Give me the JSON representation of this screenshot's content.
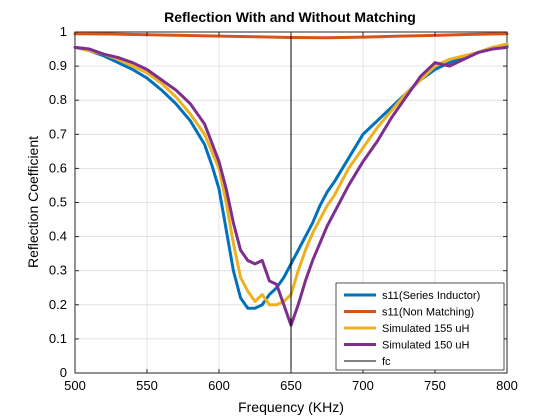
{
  "chart_data": {
    "type": "line",
    "title": "Reflection With and Without Matching",
    "xlabel": "Frequency (KHz)",
    "ylabel": "Reflection Coefficient",
    "xlim": [
      500,
      800
    ],
    "ylim": [
      0,
      1
    ],
    "xticks": [
      500,
      550,
      600,
      650,
      700,
      750,
      800
    ],
    "yticks": [
      0,
      0.1,
      0.2,
      0.3,
      0.4,
      0.5,
      0.6,
      0.7,
      0.8,
      0.9,
      1
    ],
    "grid": true,
    "legend_position": "bottom-right",
    "series": [
      {
        "name": "s11(Series Inductor)",
        "color": "#0072BD",
        "x": [
          500,
          510,
          520,
          530,
          540,
          550,
          560,
          570,
          580,
          590,
          595,
          600,
          605,
          610,
          615,
          620,
          625,
          630,
          635,
          640,
          645,
          650,
          655,
          660,
          665,
          670,
          675,
          680,
          690,
          700,
          710,
          720,
          730,
          740,
          750,
          760,
          770,
          780,
          790,
          800
        ],
        "y": [
          0.955,
          0.945,
          0.93,
          0.91,
          0.89,
          0.865,
          0.83,
          0.79,
          0.74,
          0.67,
          0.61,
          0.54,
          0.42,
          0.3,
          0.22,
          0.19,
          0.19,
          0.2,
          0.23,
          0.25,
          0.28,
          0.32,
          0.36,
          0.4,
          0.44,
          0.49,
          0.53,
          0.56,
          0.63,
          0.7,
          0.74,
          0.78,
          0.82,
          0.86,
          0.89,
          0.91,
          0.925,
          0.94,
          0.955,
          0.96
        ]
      },
      {
        "name": "s11(Non Matching)",
        "color": "#D95319",
        "x": [
          500,
          525,
          550,
          575,
          600,
          625,
          650,
          675,
          700,
          725,
          750,
          775,
          800
        ],
        "y": [
          0.995,
          0.994,
          0.992,
          0.99,
          0.988,
          0.986,
          0.984,
          0.983,
          0.985,
          0.988,
          0.99,
          0.993,
          0.995
        ]
      },
      {
        "name": "Simulated 155 uH",
        "color": "#EDB120",
        "x": [
          500,
          510,
          520,
          530,
          540,
          550,
          560,
          570,
          580,
          590,
          600,
          605,
          610,
          615,
          620,
          625,
          630,
          635,
          640,
          645,
          650,
          655,
          660,
          665,
          670,
          675,
          680,
          690,
          700,
          710,
          720,
          730,
          740,
          750,
          760,
          770,
          780,
          790,
          800
        ],
        "y": [
          0.955,
          0.945,
          0.935,
          0.92,
          0.9,
          0.88,
          0.85,
          0.81,
          0.76,
          0.7,
          0.6,
          0.5,
          0.38,
          0.28,
          0.24,
          0.21,
          0.23,
          0.2,
          0.2,
          0.21,
          0.23,
          0.3,
          0.36,
          0.41,
          0.45,
          0.49,
          0.52,
          0.6,
          0.66,
          0.72,
          0.77,
          0.82,
          0.86,
          0.9,
          0.92,
          0.93,
          0.94,
          0.955,
          0.965
        ]
      },
      {
        "name": "Simulated 150 uH",
        "color": "#7E2F8E",
        "x": [
          500,
          510,
          520,
          530,
          540,
          550,
          560,
          570,
          580,
          590,
          600,
          605,
          610,
          615,
          620,
          625,
          630,
          635,
          640,
          645,
          650,
          655,
          660,
          665,
          670,
          675,
          680,
          690,
          700,
          710,
          720,
          730,
          740,
          750,
          760,
          770,
          780,
          790,
          800
        ],
        "y": [
          0.955,
          0.95,
          0.935,
          0.925,
          0.91,
          0.89,
          0.86,
          0.83,
          0.79,
          0.73,
          0.62,
          0.54,
          0.44,
          0.36,
          0.33,
          0.32,
          0.33,
          0.27,
          0.26,
          0.2,
          0.14,
          0.2,
          0.27,
          0.33,
          0.38,
          0.43,
          0.47,
          0.55,
          0.62,
          0.68,
          0.75,
          0.81,
          0.87,
          0.91,
          0.9,
          0.92,
          0.94,
          0.95,
          0.955
        ]
      },
      {
        "name": "fc",
        "color": "#000000",
        "x": [
          650,
          650
        ],
        "y": [
          0,
          1
        ]
      }
    ]
  }
}
